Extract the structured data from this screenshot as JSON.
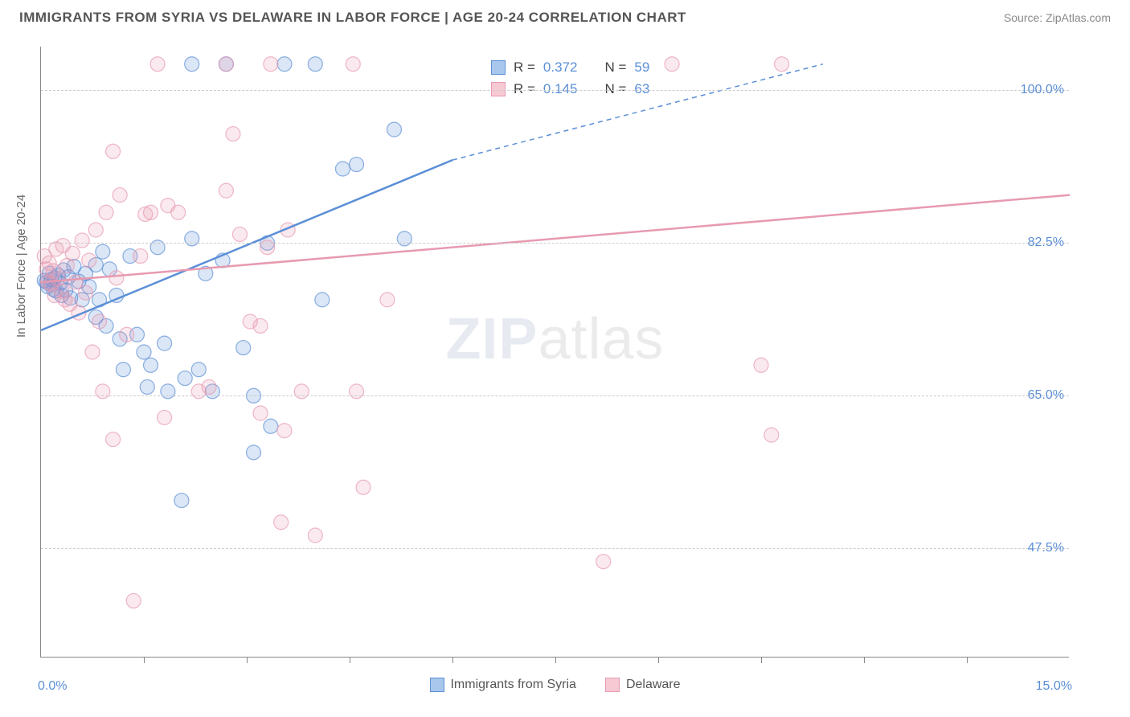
{
  "title": "IMMIGRANTS FROM SYRIA VS DELAWARE IN LABOR FORCE | AGE 20-24 CORRELATION CHART",
  "source_text": "Source: ZipAtlas.com",
  "y_axis_label": "In Labor Force | Age 20-24",
  "watermark": {
    "part1": "ZIP",
    "part2": "atlas"
  },
  "chart": {
    "type": "scatter",
    "background_color": "#ffffff",
    "grid_color": "#cccccc",
    "axis_color": "#888888",
    "tick_label_color": "#5b8fd6",
    "xlim": [
      0.0,
      15.0
    ],
    "ylim": [
      35.0,
      105.0
    ],
    "x_ticks": [
      0.0,
      15.0
    ],
    "x_tick_labels": [
      "0.0%",
      "15.0%"
    ],
    "x_minor_ticks": [
      1.5,
      3.0,
      4.5,
      6.0,
      7.5,
      9.0,
      10.5,
      12.0,
      13.5
    ],
    "y_ticks": [
      47.5,
      65.0,
      82.5,
      100.0
    ],
    "y_tick_labels": [
      "47.5%",
      "65.0%",
      "82.5%",
      "100.0%"
    ],
    "marker_radius": 9,
    "marker_fill_opacity": 0.22,
    "marker_stroke_width": 1.2,
    "trend_line_width": 2.5
  },
  "series": [
    {
      "name": "Immigrants from Syria",
      "label": "Immigrants from Syria",
      "color": "#5b8fd6",
      "fill": "#a9c7ec",
      "R": "0.372",
      "N": "59",
      "trend": {
        "x1": 0.0,
        "y1": 72.5,
        "x2": 6.0,
        "y2": 92.0,
        "x2_dash": 11.4,
        "y2_dash": 103.0
      },
      "points": [
        [
          0.05,
          78.2
        ],
        [
          0.08,
          78.0
        ],
        [
          0.1,
          77.5
        ],
        [
          0.12,
          79.0
        ],
        [
          0.14,
          77.8
        ],
        [
          0.15,
          78.3
        ],
        [
          0.18,
          77.2
        ],
        [
          0.2,
          78.5
        ],
        [
          0.22,
          77.0
        ],
        [
          0.25,
          78.8
        ],
        [
          0.28,
          77.9
        ],
        [
          0.3,
          76.5
        ],
        [
          0.33,
          79.4
        ],
        [
          0.36,
          77.1
        ],
        [
          0.4,
          78.6
        ],
        [
          0.43,
          76.2
        ],
        [
          0.48,
          79.8
        ],
        [
          0.55,
          78.1
        ],
        [
          0.6,
          76.0
        ],
        [
          0.65,
          79.0
        ],
        [
          0.7,
          77.5
        ],
        [
          0.8,
          80.0
        ],
        [
          0.8,
          74.0
        ],
        [
          0.85,
          76.0
        ],
        [
          0.9,
          81.5
        ],
        [
          0.95,
          73.0
        ],
        [
          1.0,
          79.5
        ],
        [
          1.1,
          76.5
        ],
        [
          1.15,
          71.5
        ],
        [
          1.2,
          68.0
        ],
        [
          1.3,
          81.0
        ],
        [
          1.4,
          72.0
        ],
        [
          1.5,
          70.0
        ],
        [
          1.55,
          66.0
        ],
        [
          1.6,
          68.5
        ],
        [
          1.7,
          82.0
        ],
        [
          1.8,
          71.0
        ],
        [
          1.85,
          65.5
        ],
        [
          2.05,
          53.0
        ],
        [
          2.1,
          67.0
        ],
        [
          2.2,
          83.0
        ],
        [
          2.2,
          103.0
        ],
        [
          2.3,
          68.0
        ],
        [
          2.4,
          79.0
        ],
        [
          2.5,
          65.5
        ],
        [
          2.65,
          80.5
        ],
        [
          2.7,
          103.0
        ],
        [
          2.95,
          70.5
        ],
        [
          3.1,
          65.0
        ],
        [
          3.1,
          58.5
        ],
        [
          3.3,
          82.5
        ],
        [
          3.35,
          61.5
        ],
        [
          3.55,
          103.0
        ],
        [
          4.0,
          103.0
        ],
        [
          4.1,
          76.0
        ],
        [
          4.4,
          91.0
        ],
        [
          4.6,
          91.5
        ],
        [
          5.15,
          95.5
        ],
        [
          5.3,
          83.0
        ]
      ]
    },
    {
      "name": "Delaware",
      "label": "Delaware",
      "color": "#e79ab0",
      "fill": "#f6c9d3",
      "R": "0.145",
      "N": "63",
      "trend": {
        "x1": 0.0,
        "y1": 78.0,
        "x2": 15.0,
        "y2": 88.0
      },
      "points": [
        [
          0.05,
          81.0
        ],
        [
          0.08,
          79.5
        ],
        [
          0.1,
          78.0
        ],
        [
          0.12,
          80.2
        ],
        [
          0.15,
          77.8
        ],
        [
          0.18,
          79.3
        ],
        [
          0.2,
          76.5
        ],
        [
          0.22,
          81.8
        ],
        [
          0.25,
          78.4
        ],
        [
          0.3,
          77.0
        ],
        [
          0.32,
          82.2
        ],
        [
          0.35,
          76.0
        ],
        [
          0.38,
          79.9
        ],
        [
          0.42,
          75.5
        ],
        [
          0.46,
          81.3
        ],
        [
          0.5,
          78.0
        ],
        [
          0.55,
          74.5
        ],
        [
          0.6,
          82.8
        ],
        [
          0.65,
          76.8
        ],
        [
          0.7,
          80.5
        ],
        [
          0.75,
          70.0
        ],
        [
          0.8,
          84.0
        ],
        [
          0.85,
          73.5
        ],
        [
          0.9,
          65.5
        ],
        [
          0.95,
          86.0
        ],
        [
          1.05,
          60.0
        ],
        [
          1.05,
          93.0
        ],
        [
          1.1,
          78.5
        ],
        [
          1.15,
          88.0
        ],
        [
          1.25,
          72.0
        ],
        [
          1.35,
          41.5
        ],
        [
          1.45,
          81.0
        ],
        [
          1.52,
          85.8
        ],
        [
          1.6,
          86.0
        ],
        [
          1.7,
          103.0
        ],
        [
          1.8,
          62.5
        ],
        [
          1.85,
          86.8
        ],
        [
          2.0,
          86.0
        ],
        [
          2.3,
          65.5
        ],
        [
          2.45,
          66.0
        ],
        [
          2.7,
          88.5
        ],
        [
          2.7,
          103.0
        ],
        [
          2.8,
          95.0
        ],
        [
          2.9,
          83.5
        ],
        [
          3.05,
          73.5
        ],
        [
          3.2,
          73.0
        ],
        [
          3.2,
          63.0
        ],
        [
          3.3,
          82.0
        ],
        [
          3.35,
          103.0
        ],
        [
          3.5,
          50.5
        ],
        [
          3.55,
          61.0
        ],
        [
          3.6,
          84.0
        ],
        [
          3.8,
          65.5
        ],
        [
          4.0,
          49.0
        ],
        [
          4.55,
          103.0
        ],
        [
          4.6,
          65.5
        ],
        [
          4.7,
          54.5
        ],
        [
          5.05,
          76.0
        ],
        [
          8.2,
          46.0
        ],
        [
          9.2,
          103.0
        ],
        [
          10.5,
          68.5
        ],
        [
          10.65,
          60.5
        ],
        [
          10.8,
          103.0
        ]
      ]
    }
  ],
  "top_legend": {
    "R_label": "R =",
    "N_label": "N ="
  },
  "bottom_legend_labels": [
    "Immigrants from Syria",
    "Delaware"
  ]
}
